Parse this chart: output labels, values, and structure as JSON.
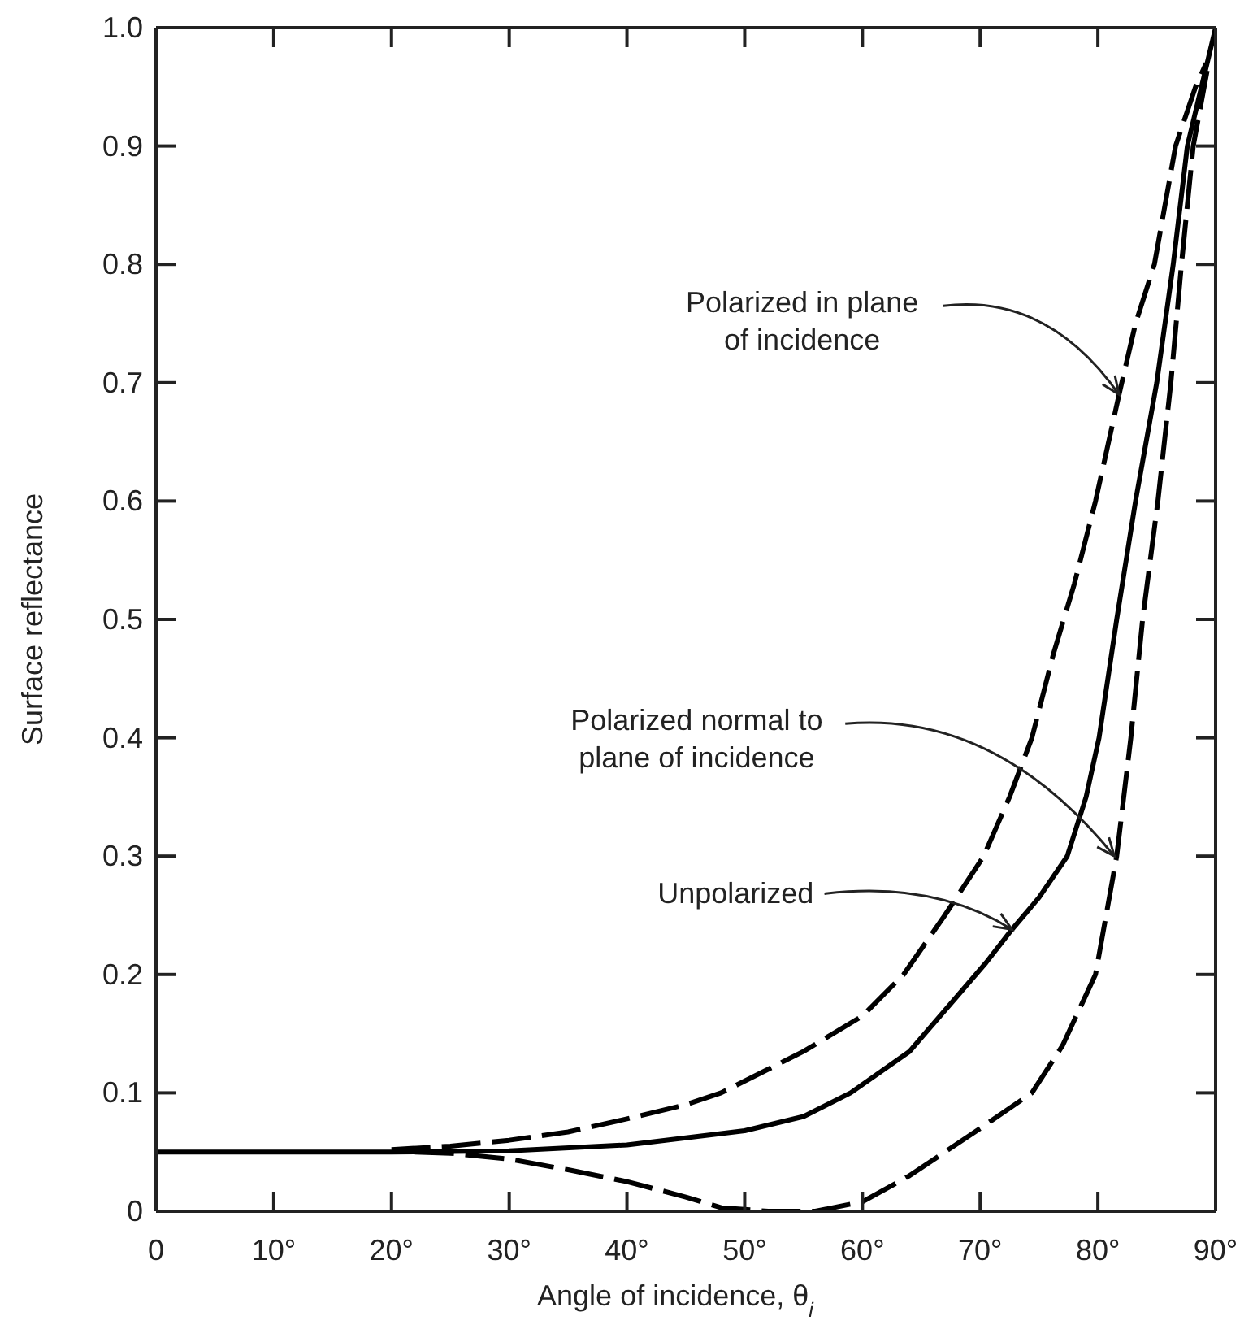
{
  "chart_data": {
    "type": "line",
    "xlabel": "Angle of incidence, θ$_{i}$",
    "ylabel": "Surface reflectance",
    "xlim": [
      0,
      90
    ],
    "ylim": [
      0,
      1
    ],
    "xticks": [
      0,
      {
        "value": 10,
        "label": "10°"
      },
      {
        "value": 20,
        "label": "20°"
      },
      {
        "value": 30,
        "label": "30°"
      },
      {
        "value": 40,
        "label": "40°"
      },
      {
        "value": 50,
        "label": "50°"
      },
      {
        "value": 60,
        "label": "60°"
      },
      {
        "value": 70,
        "label": "70°"
      },
      {
        "value": 80,
        "label": "80°"
      },
      {
        "value": 90,
        "label": "90°"
      }
    ],
    "yticks": [
      0,
      0.1,
      0.2,
      0.3,
      0.4,
      0.5,
      0.6,
      0.7,
      0.8,
      0.9,
      {
        "value": 1,
        "label": "1.0"
      }
    ],
    "marker": "none",
    "series": [
      {
        "color": "#000000",
        "line_style": "dashed",
        "x": [
          20,
          25,
          30,
          35,
          40,
          45,
          48,
          55,
          60,
          63.5,
          67,
          70.3,
          72.5,
          74.4,
          76.2,
          78,
          79.8,
          81.8,
          83.2,
          84.8,
          86.6,
          88.3,
          89.2
        ],
        "values": [
          0.052,
          0.055,
          0.06,
          0.067,
          0.078,
          0.09,
          0.1,
          0.135,
          0.165,
          0.2,
          0.25,
          0.3,
          0.35,
          0.4,
          0.47,
          0.53,
          0.6,
          0.69,
          0.75,
          0.8,
          0.9,
          0.95,
          0.97
        ]
      },
      {
        "color": "#000000",
        "line_style": "solid",
        "x": [
          0,
          20,
          30,
          40,
          50,
          55,
          59,
          64,
          67.9,
          70.5,
          72.7,
          75,
          77.4,
          79,
          80.1,
          81.6,
          83.2,
          85,
          86.4,
          87.6,
          90
        ],
        "values": [
          0.05,
          0.05,
          0.051,
          0.056,
          0.068,
          0.08,
          0.1,
          0.135,
          0.18,
          0.21,
          0.238,
          0.265,
          0.3,
          0.35,
          0.4,
          0.5,
          0.6,
          0.7,
          0.8,
          0.9,
          1
        ]
      },
      {
        "color": "#000000",
        "line_style": "dashed",
        "x": [
          22,
          25,
          30,
          35,
          40,
          45,
          48,
          52,
          56,
          60,
          64,
          67,
          70,
          74.4,
          77,
          79.8,
          81.6,
          82.8,
          83.8,
          85.1,
          86.2,
          87.1,
          88.1,
          89.4
        ],
        "values": [
          0.05,
          0.049,
          0.044,
          0.035,
          0.025,
          0.012,
          0.003,
          0,
          0,
          0.008,
          0.03,
          0.05,
          0.07,
          0.1,
          0.14,
          0.2,
          0.3,
          0.4,
          0.5,
          0.6,
          0.7,
          0.8,
          0.9,
          0.97
        ]
      }
    ],
    "annotations": [
      {
        "text": "Polarized in plane\nof incidence",
        "x": 81.8,
        "y": 0.69
      },
      {
        "text": "Polarized normal to\nplane of incidence",
        "x": 81.4,
        "y": 0.3
      },
      {
        "text": "Unpolarized",
        "x": 72.7,
        "y": 0.238
      }
    ]
  }
}
